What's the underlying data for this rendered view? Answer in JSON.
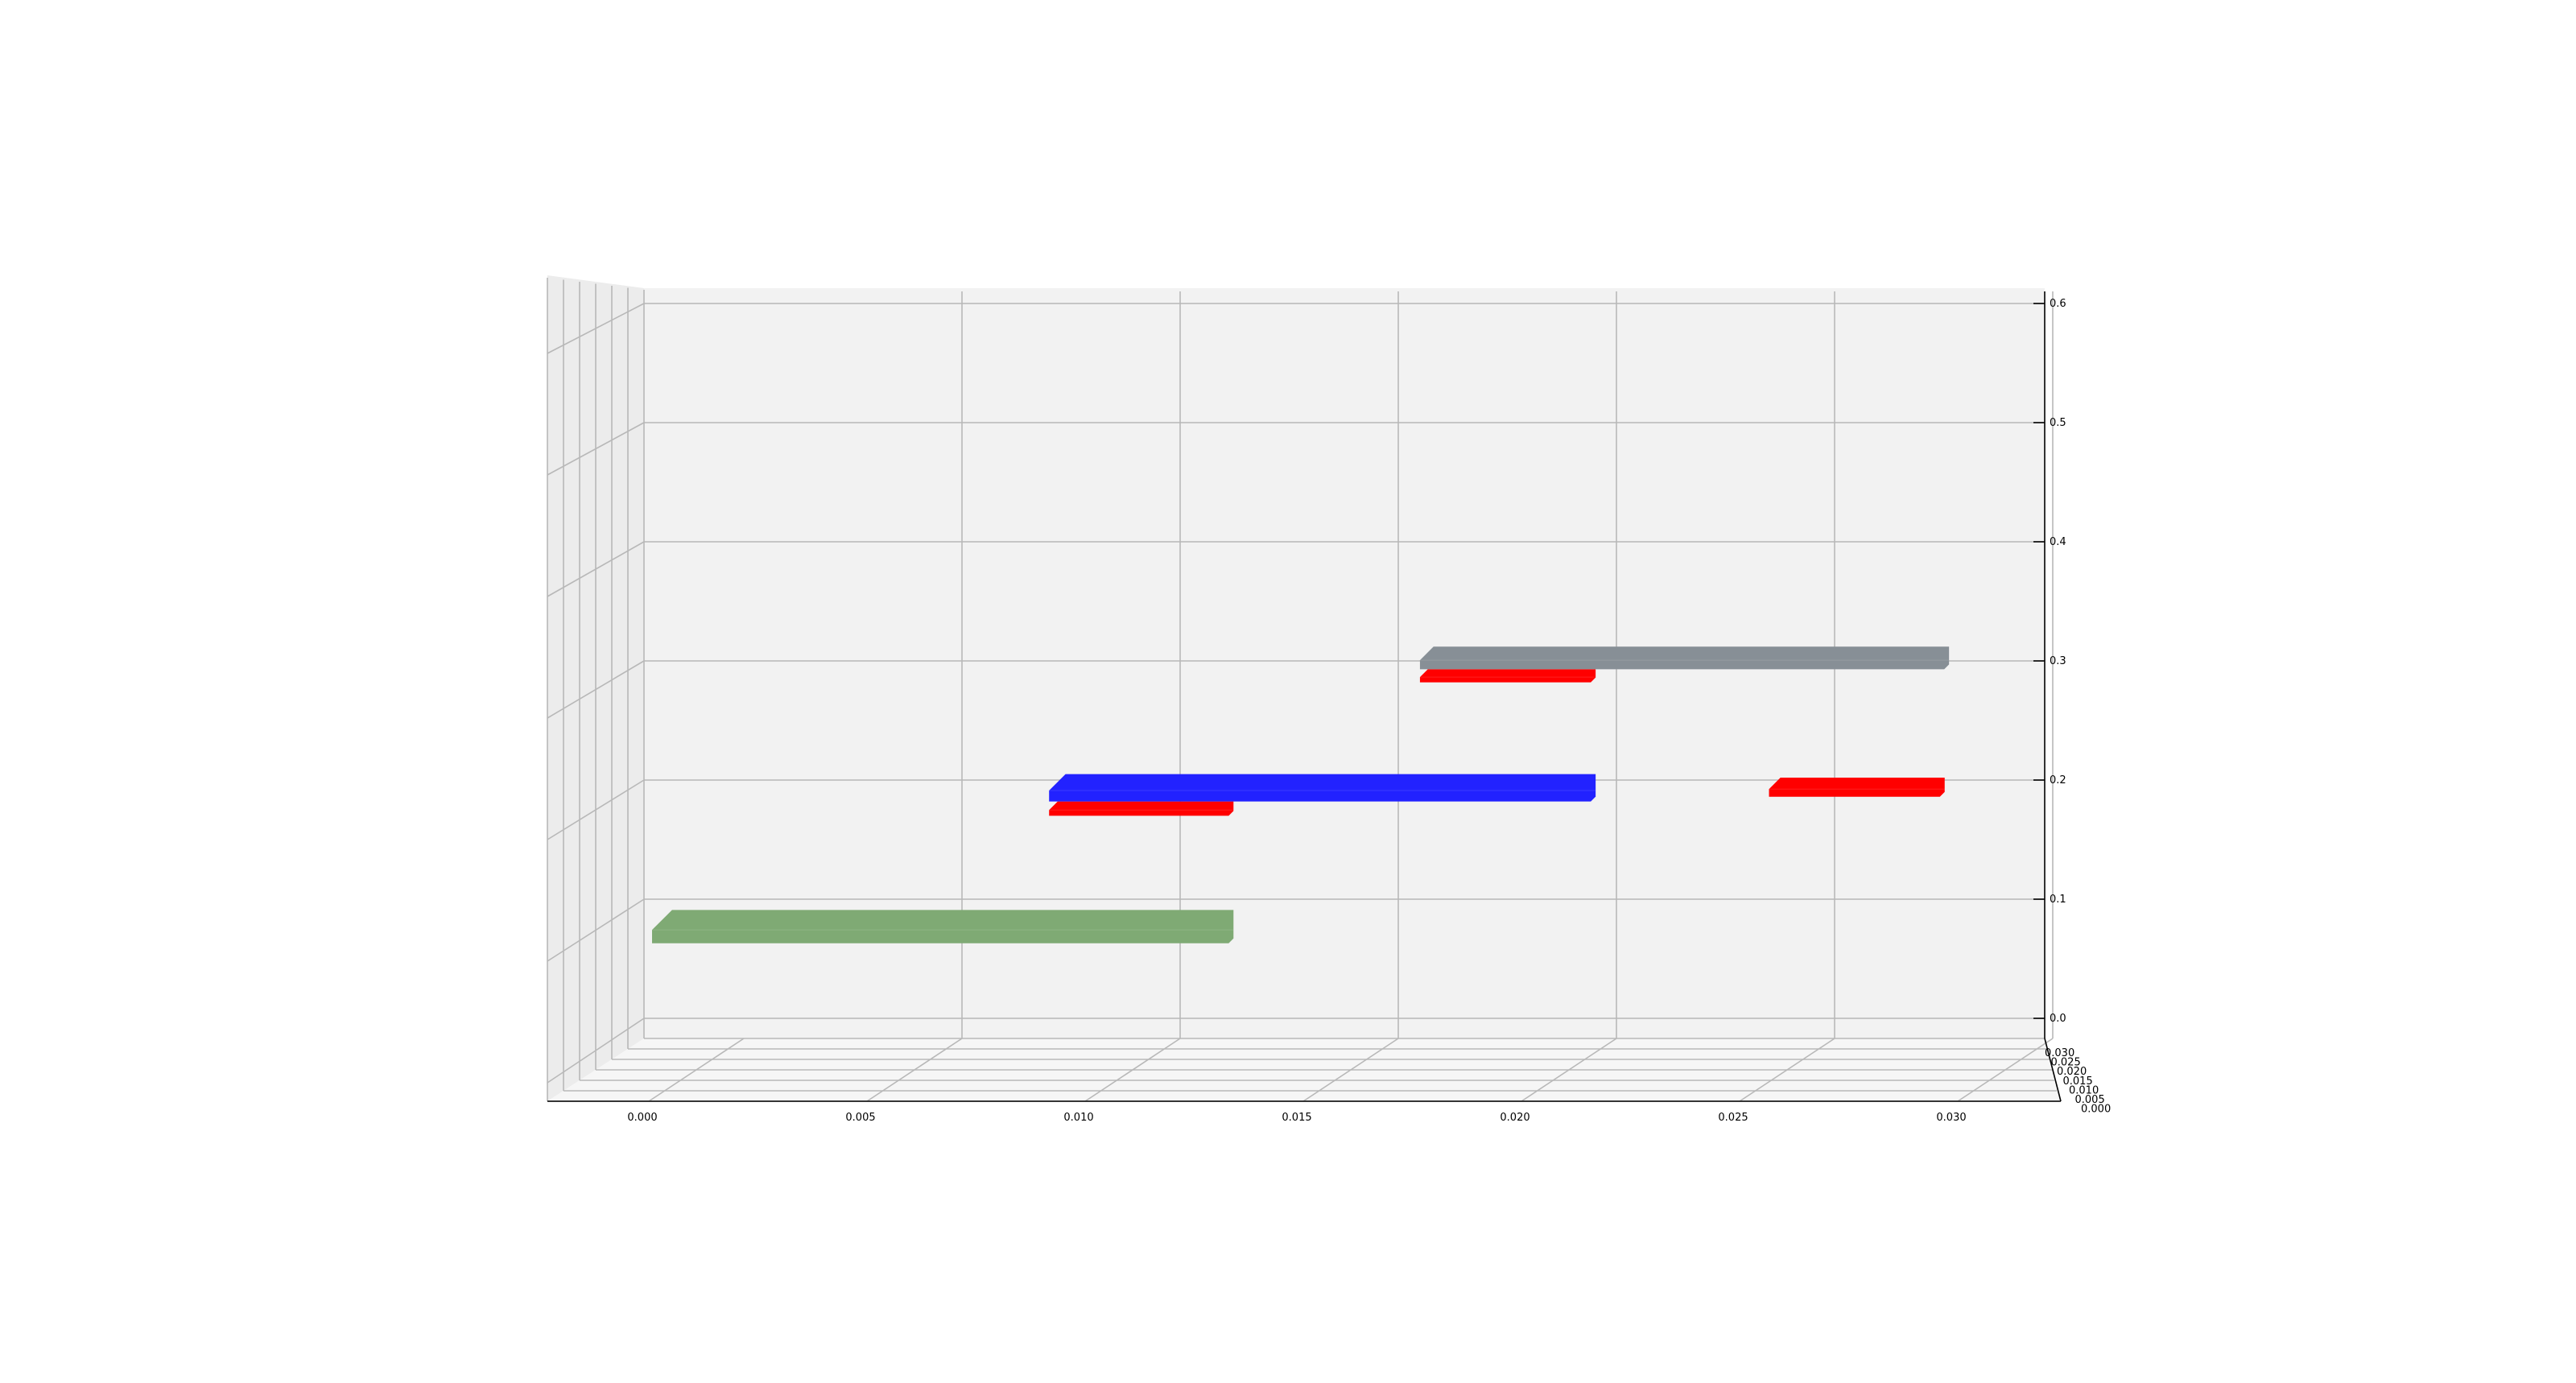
{
  "chart_data": {
    "type": "bar3d",
    "title": "",
    "xlabel": "",
    "ylabel": "",
    "zlabel": "",
    "x_ticks": [
      "0.000",
      "0.005",
      "0.010",
      "0.015",
      "0.020",
      "0.025",
      "0.030"
    ],
    "z_ticks": [
      "0.0",
      "0.1",
      "0.2",
      "0.3",
      "0.4",
      "0.5",
      "0.6"
    ],
    "y_ticks": [
      "0.000",
      "0.005",
      "0.010",
      "0.015",
      "0.020",
      "0.025",
      "0.030"
    ],
    "xlim": [
      0,
      0.0315
    ],
    "zlim": [
      0,
      0.6
    ],
    "bars": [
      {
        "x_start": 0.0,
        "x_end": 0.0134,
        "z_low": 0.063,
        "z_high": 0.091,
        "color": "#7faa74"
      },
      {
        "x_start": 0.0091,
        "x_end": 0.0134,
        "z_low": 0.17,
        "z_high": 0.182,
        "color": "#ff0000"
      },
      {
        "x_start": 0.0091,
        "x_end": 0.0217,
        "z_low": 0.182,
        "z_high": 0.205,
        "color": "#2222ff"
      },
      {
        "x_start": 0.0176,
        "x_end": 0.0217,
        "z_low": 0.282,
        "z_high": 0.293,
        "color": "#ff0000"
      },
      {
        "x_start": 0.0176,
        "x_end": 0.0298,
        "z_low": 0.293,
        "z_high": 0.312,
        "color": "#878f96"
      },
      {
        "x_start": 0.0256,
        "x_end": 0.0297,
        "z_low": 0.186,
        "z_high": 0.202,
        "color": "#ff0000"
      }
    ]
  }
}
